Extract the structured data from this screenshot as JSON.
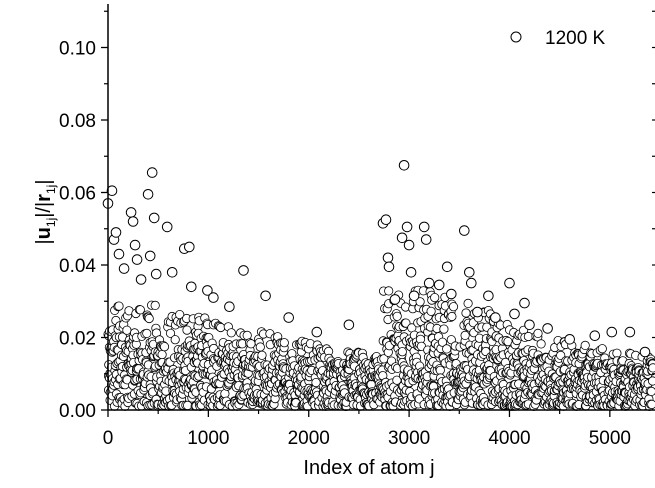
{
  "chart_data": {
    "type": "scatter",
    "xlabel": "Index of atom j",
    "ylabel_parts": [
      "|",
      "u",
      "1j",
      "|/|",
      "r",
      "1j",
      "|"
    ],
    "xlim": [
      0,
      5450
    ],
    "ylim": [
      0,
      0.112
    ],
    "x_ticks": [
      0,
      1000,
      2000,
      3000,
      4000,
      5000
    ],
    "x_tick_labels": [
      "0",
      "1000",
      "2000",
      "3000",
      "4000",
      "5000"
    ],
    "y_ticks": [
      0,
      0.02,
      0.04,
      0.06,
      0.08,
      0.1
    ],
    "y_tick_labels": [
      "0.00",
      "0.02",
      "0.04",
      "0.06",
      "0.08",
      "0.10"
    ],
    "grid": false,
    "legend_position": "top-right",
    "marker": "open-circle",
    "series": [
      {
        "name": "1200 K",
        "color": "#000000",
        "points": [
          [
            0,
            0.057
          ],
          [
            40,
            0.0605
          ],
          [
            60,
            0.047
          ],
          [
            80,
            0.049
          ],
          [
            110,
            0.043
          ],
          [
            160,
            0.039
          ],
          [
            230,
            0.0545
          ],
          [
            250,
            0.052
          ],
          [
            270,
            0.0455
          ],
          [
            290,
            0.0415
          ],
          [
            330,
            0.036
          ],
          [
            400,
            0.0595
          ],
          [
            420,
            0.0425
          ],
          [
            440,
            0.0655
          ],
          [
            460,
            0.053
          ],
          [
            480,
            0.0375
          ],
          [
            590,
            0.0505
          ],
          [
            640,
            0.038
          ],
          [
            760,
            0.0445
          ],
          [
            810,
            0.045
          ],
          [
            830,
            0.034
          ],
          [
            990,
            0.033
          ],
          [
            1050,
            0.031
          ],
          [
            1210,
            0.0285
          ],
          [
            1350,
            0.0385
          ],
          [
            1570,
            0.0315
          ],
          [
            1800,
            0.0255
          ],
          [
            2080,
            0.0215
          ],
          [
            2400,
            0.0235
          ],
          [
            2740,
            0.0515
          ],
          [
            2770,
            0.0525
          ],
          [
            2790,
            0.042
          ],
          [
            2800,
            0.0395
          ],
          [
            2860,
            0.0305
          ],
          [
            2930,
            0.0475
          ],
          [
            2950,
            0.0675
          ],
          [
            2980,
            0.0505
          ],
          [
            3000,
            0.0455
          ],
          [
            3020,
            0.038
          ],
          [
            3050,
            0.0315
          ],
          [
            3150,
            0.0505
          ],
          [
            3170,
            0.047
          ],
          [
            3200,
            0.035
          ],
          [
            3300,
            0.0345
          ],
          [
            3380,
            0.0395
          ],
          [
            3420,
            0.032
          ],
          [
            3550,
            0.0495
          ],
          [
            3600,
            0.038
          ],
          [
            3620,
            0.035
          ],
          [
            3680,
            0.027
          ],
          [
            3790,
            0.0315
          ],
          [
            3860,
            0.0255
          ],
          [
            4000,
            0.035
          ],
          [
            4050,
            0.0265
          ],
          [
            4150,
            0.0295
          ],
          [
            4200,
            0.0235
          ],
          [
            4380,
            0.0225
          ],
          [
            4600,
            0.0195
          ],
          [
            4850,
            0.0205
          ],
          [
            5020,
            0.0215
          ],
          [
            5200,
            0.0215
          ],
          [
            5350,
            0.016
          ]
        ]
      }
    ],
    "noise_band": [
      [
        0,
        0.018,
        0.028
      ],
      [
        300,
        0.018,
        0.03
      ],
      [
        600,
        0.017,
        0.028
      ],
      [
        900,
        0.016,
        0.026
      ],
      [
        1200,
        0.015,
        0.024
      ],
      [
        1500,
        0.014,
        0.022
      ],
      [
        1800,
        0.013,
        0.02
      ],
      [
        2100,
        0.013,
        0.018
      ],
      [
        2400,
        0.012,
        0.016
      ],
      [
        2650,
        0.012,
        0.016
      ],
      [
        2700,
        0.014,
        0.024
      ],
      [
        2750,
        0.019,
        0.034
      ],
      [
        3000,
        0.02,
        0.034
      ],
      [
        3300,
        0.019,
        0.032
      ],
      [
        3600,
        0.018,
        0.03
      ],
      [
        3900,
        0.016,
        0.026
      ],
      [
        4200,
        0.014,
        0.022
      ],
      [
        4500,
        0.013,
        0.02
      ],
      [
        4800,
        0.012,
        0.018
      ],
      [
        5100,
        0.011,
        0.016
      ],
      [
        5450,
        0.01,
        0.015
      ]
    ]
  }
}
